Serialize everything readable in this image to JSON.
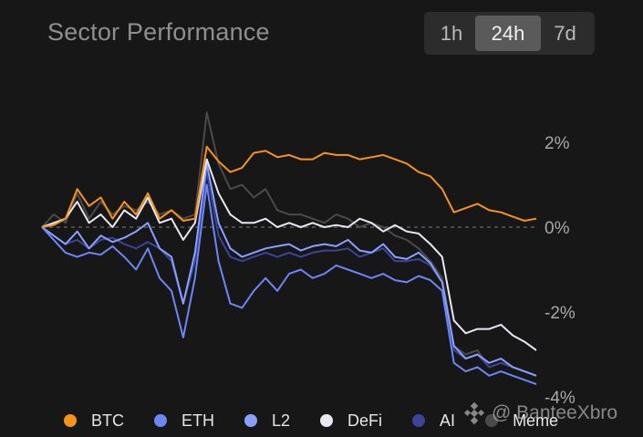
{
  "title": "Sector Performance",
  "timeframes": [
    {
      "label": "1h",
      "active": false
    },
    {
      "label": "24h",
      "active": true
    },
    {
      "label": "7d",
      "active": false
    }
  ],
  "watermark": "@ BanteeXbro",
  "chart_data": {
    "type": "line",
    "title": "Sector Performance",
    "xlabel": "",
    "ylabel": "",
    "ylim": [
      -4,
      2.5
    ],
    "y_ticks": [
      "2%",
      "0%",
      "-2%",
      "-4%"
    ],
    "y_tick_values": [
      2,
      0,
      -2,
      -4
    ],
    "zero_line": "dashed",
    "grid": false,
    "legend_position": "bottom",
    "series": [
      {
        "name": "BTC",
        "color": "#f7931a",
        "values": [
          0,
          0.05,
          0.2,
          0.9,
          0.5,
          0.7,
          0.2,
          0.6,
          0.3,
          0.8,
          0.2,
          0.4,
          0.15,
          0.2,
          1.9,
          1.55,
          1.3,
          1.4,
          1.75,
          1.8,
          1.65,
          1.7,
          1.6,
          1.6,
          1.75,
          1.7,
          1.7,
          1.6,
          1.65,
          1.7,
          1.6,
          1.5,
          1.3,
          1.2,
          0.9,
          0.35,
          0.45,
          0.55,
          0.4,
          0.35,
          0.25,
          0.15,
          0.2
        ]
      },
      {
        "name": "ETH",
        "color": "#6c86f5",
        "values": [
          0,
          -0.3,
          -0.6,
          -0.7,
          -0.6,
          -0.65,
          -0.45,
          -0.7,
          -1.0,
          -0.5,
          -1.2,
          -1.5,
          -2.6,
          -1.2,
          1.0,
          -0.8,
          -1.8,
          -1.9,
          -1.5,
          -1.2,
          -1.5,
          -1.1,
          -1.0,
          -1.2,
          -1.1,
          -0.9,
          -1.0,
          -1.1,
          -1.2,
          -1.1,
          -1.25,
          -1.3,
          -1.15,
          -1.25,
          -1.5,
          -3.2,
          -3.4,
          -3.3,
          -3.5,
          -3.4,
          -3.5,
          -3.6,
          -3.7
        ]
      },
      {
        "name": "L2",
        "color": "#8aa0ff",
        "values": [
          0,
          -0.2,
          -0.4,
          -0.1,
          -0.5,
          -0.2,
          -0.35,
          -0.25,
          -0.1,
          0.1,
          -0.5,
          -0.7,
          -1.8,
          -0.6,
          1.5,
          0.1,
          -0.5,
          -0.7,
          -0.6,
          -0.5,
          -0.45,
          -0.4,
          -0.55,
          -0.45,
          -0.4,
          -0.45,
          -0.3,
          -0.55,
          -0.6,
          -0.4,
          -0.7,
          -0.75,
          -0.6,
          -0.85,
          -1.3,
          -2.8,
          -3.1,
          -3.0,
          -3.2,
          -3.1,
          -3.3,
          -3.4,
          -3.5
        ]
      },
      {
        "name": "DeFi",
        "color": "#e8e8f2",
        "values": [
          0,
          0.1,
          0.2,
          0.6,
          0.1,
          0.3,
          0.0,
          0.4,
          0.2,
          0.7,
          0.1,
          0.2,
          -0.3,
          0.1,
          1.6,
          0.8,
          0.3,
          0.1,
          0.1,
          0.2,
          0.0,
          0.1,
          0.0,
          0.1,
          0.0,
          0.05,
          0.0,
          0.2,
          0.1,
          -0.1,
          0.05,
          -0.1,
          -0.15,
          -0.4,
          -0.7,
          -2.2,
          -2.5,
          -2.4,
          -2.4,
          -2.3,
          -2.55,
          -2.7,
          -2.9
        ]
      },
      {
        "name": "AI",
        "color": "#3a4499",
        "values": [
          0,
          -0.2,
          -0.4,
          -0.3,
          -0.5,
          -0.3,
          -0.25,
          -0.4,
          -0.5,
          -0.35,
          -0.5,
          -0.8,
          -1.8,
          -0.8,
          1.3,
          -0.2,
          -0.7,
          -0.8,
          -0.7,
          -0.6,
          -0.7,
          -0.6,
          -0.7,
          -0.6,
          -0.55,
          -0.55,
          -0.5,
          -0.7,
          -0.6,
          -0.5,
          -0.8,
          -0.8,
          -0.75,
          -0.9,
          -1.3,
          -2.9,
          -3.1,
          -3.0,
          -3.3,
          -3.2,
          -3.3,
          -3.4,
          -3.5
        ]
      },
      {
        "name": "Meme",
        "color": "#4a4a4a",
        "values": [
          0,
          0.3,
          0.1,
          0.8,
          0.2,
          0.6,
          0.3,
          0.5,
          0.4,
          0.6,
          0.3,
          0.4,
          0.2,
          0.3,
          2.7,
          1.5,
          0.9,
          1.0,
          0.7,
          0.9,
          0.4,
          0.3,
          0.3,
          0.2,
          0.1,
          0.3,
          0.2,
          0.0,
          0.1,
          0.0,
          -0.2,
          -0.3,
          -0.5,
          -0.8,
          -1.2,
          -2.8,
          -3.0,
          -2.9,
          -3.3,
          -3.2,
          -3.3,
          -3.4,
          -3.5
        ]
      }
    ]
  }
}
